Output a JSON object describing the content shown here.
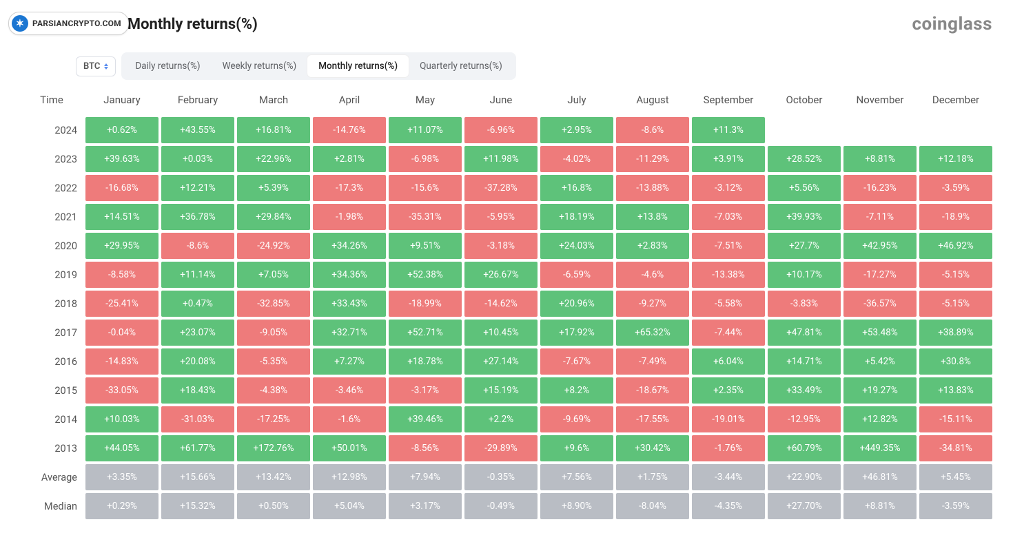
{
  "badge_text": "PARSIANCRYPTO.COM",
  "title": "Bitcoin Monthly returns(%)",
  "brand": "coinglass",
  "selector_value": "BTC",
  "tabs": [
    {
      "label": "Daily returns(%)",
      "active": false
    },
    {
      "label": "Weekly returns(%)",
      "active": false
    },
    {
      "label": "Monthly returns(%)",
      "active": true
    },
    {
      "label": "Quarterly returns(%)",
      "active": false
    }
  ],
  "columns": [
    "Time",
    "January",
    "February",
    "March",
    "April",
    "May",
    "June",
    "July",
    "August",
    "September",
    "October",
    "November",
    "December"
  ],
  "colors": {
    "positive": "#5ec27a",
    "negative": "#ee7b7b",
    "aggregate": "#b9bdc4",
    "background": "#ffffff",
    "text": "#ffffff"
  },
  "data_rows": [
    {
      "label": "2024",
      "values": [
        "+0.62%",
        "+43.55%",
        "+16.81%",
        "-14.76%",
        "+11.07%",
        "-6.96%",
        "+2.95%",
        "-8.6%",
        "+11.3%",
        null,
        null,
        null
      ]
    },
    {
      "label": "2023",
      "values": [
        "+39.63%",
        "+0.03%",
        "+22.96%",
        "+2.81%",
        "-6.98%",
        "+11.98%",
        "-4.02%",
        "-11.29%",
        "+3.91%",
        "+28.52%",
        "+8.81%",
        "+12.18%"
      ]
    },
    {
      "label": "2022",
      "values": [
        "-16.68%",
        "+12.21%",
        "+5.39%",
        "-17.3%",
        "-15.6%",
        "-37.28%",
        "+16.8%",
        "-13.88%",
        "-3.12%",
        "+5.56%",
        "-16.23%",
        "-3.59%"
      ]
    },
    {
      "label": "2021",
      "values": [
        "+14.51%",
        "+36.78%",
        "+29.84%",
        "-1.98%",
        "-35.31%",
        "-5.95%",
        "+18.19%",
        "+13.8%",
        "-7.03%",
        "+39.93%",
        "-7.11%",
        "-18.9%"
      ]
    },
    {
      "label": "2020",
      "values": [
        "+29.95%",
        "-8.6%",
        "-24.92%",
        "+34.26%",
        "+9.51%",
        "-3.18%",
        "+24.03%",
        "+2.83%",
        "-7.51%",
        "+27.7%",
        "+42.95%",
        "+46.92%"
      ]
    },
    {
      "label": "2019",
      "values": [
        "-8.58%",
        "+11.14%",
        "+7.05%",
        "+34.36%",
        "+52.38%",
        "+26.67%",
        "-6.59%",
        "-4.6%",
        "-13.38%",
        "+10.17%",
        "-17.27%",
        "-5.15%"
      ]
    },
    {
      "label": "2018",
      "values": [
        "-25.41%",
        "+0.47%",
        "-32.85%",
        "+33.43%",
        "-18.99%",
        "-14.62%",
        "+20.96%",
        "-9.27%",
        "-5.58%",
        "-3.83%",
        "-36.57%",
        "-5.15%"
      ]
    },
    {
      "label": "2017",
      "values": [
        "-0.04%",
        "+23.07%",
        "-9.05%",
        "+32.71%",
        "+52.71%",
        "+10.45%",
        "+17.92%",
        "+65.32%",
        "-7.44%",
        "+47.81%",
        "+53.48%",
        "+38.89%"
      ]
    },
    {
      "label": "2016",
      "values": [
        "-14.83%",
        "+20.08%",
        "-5.35%",
        "+7.27%",
        "+18.78%",
        "+27.14%",
        "-7.67%",
        "-7.49%",
        "+6.04%",
        "+14.71%",
        "+5.42%",
        "+30.8%"
      ]
    },
    {
      "label": "2015",
      "values": [
        "-33.05%",
        "+18.43%",
        "-4.38%",
        "-3.46%",
        "-3.17%",
        "+15.19%",
        "+8.2%",
        "-18.67%",
        "+2.35%",
        "+33.49%",
        "+19.27%",
        "+13.83%"
      ]
    },
    {
      "label": "2014",
      "values": [
        "+10.03%",
        "-31.03%",
        "-17.25%",
        "-1.6%",
        "+39.46%",
        "+2.2%",
        "-9.69%",
        "-17.55%",
        "-19.01%",
        "-12.95%",
        "+12.82%",
        "-15.11%"
      ]
    },
    {
      "label": "2013",
      "values": [
        "+44.05%",
        "+61.77%",
        "+172.76%",
        "+50.01%",
        "-8.56%",
        "-29.89%",
        "+9.6%",
        "+30.42%",
        "-1.76%",
        "+60.79%",
        "+449.35%",
        "-34.81%"
      ]
    }
  ],
  "agg_rows": [
    {
      "label": "Average",
      "values": [
        "+3.35%",
        "+15.66%",
        "+13.42%",
        "+12.98%",
        "+7.94%",
        "-0.35%",
        "+7.56%",
        "+1.75%",
        "-3.44%",
        "+22.90%",
        "+46.81%",
        "+5.45%"
      ]
    },
    {
      "label": "Median",
      "values": [
        "+0.29%",
        "+15.32%",
        "+0.50%",
        "+5.04%",
        "+3.17%",
        "-0.49%",
        "+8.90%",
        "-8.04%",
        "-4.35%",
        "+27.70%",
        "+8.81%",
        "-3.59%"
      ]
    }
  ]
}
